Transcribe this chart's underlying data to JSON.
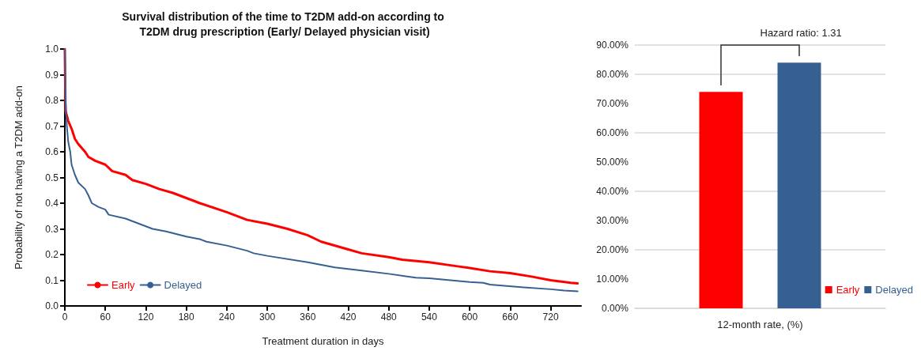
{
  "chart_data": [
    {
      "type": "line",
      "title": "Survival distribution of the time to T2DM add-on according to T2DM drug prescription (Early/ Delayed physician visit)",
      "xlabel": "Treatment duration in days",
      "ylabel": "Probability of not having a T2DM add-on",
      "series": [
        {
          "name": "Early",
          "color": "#ff0000",
          "x": [
            0,
            1,
            5,
            10,
            15,
            20,
            30,
            35,
            45,
            60,
            70,
            90,
            100,
            120,
            140,
            160,
            180,
            200,
            240,
            270,
            300,
            330,
            360,
            380,
            420,
            440,
            480,
            500,
            540,
            580,
            600,
            630,
            660,
            690,
            720,
            750,
            760
          ],
          "values": [
            1.0,
            0.76,
            0.72,
            0.69,
            0.65,
            0.63,
            0.6,
            0.58,
            0.565,
            0.55,
            0.525,
            0.51,
            0.49,
            0.475,
            0.455,
            0.44,
            0.42,
            0.4,
            0.365,
            0.335,
            0.32,
            0.3,
            0.275,
            0.25,
            0.22,
            0.205,
            0.19,
            0.18,
            0.17,
            0.155,
            0.148,
            0.135,
            0.128,
            0.115,
            0.1,
            0.09,
            0.088
          ]
        },
        {
          "name": "Delayed",
          "color": "#376092",
          "x": [
            0,
            1,
            3,
            5,
            8,
            10,
            15,
            20,
            30,
            35,
            40,
            50,
            60,
            65,
            90,
            120,
            130,
            150,
            180,
            200,
            210,
            240,
            270,
            280,
            300,
            360,
            400,
            440,
            480,
            520,
            540,
            600,
            620,
            630,
            680,
            720,
            740,
            760
          ],
          "values": [
            1.0,
            0.8,
            0.7,
            0.64,
            0.6,
            0.55,
            0.51,
            0.48,
            0.455,
            0.43,
            0.4,
            0.385,
            0.375,
            0.355,
            0.34,
            0.31,
            0.3,
            0.29,
            0.27,
            0.26,
            0.25,
            0.235,
            0.215,
            0.205,
            0.195,
            0.17,
            0.15,
            0.138,
            0.125,
            0.11,
            0.108,
            0.093,
            0.09,
            0.083,
            0.072,
            0.065,
            0.06,
            0.057
          ]
        }
      ],
      "xlim": [
        0,
        765
      ],
      "xticks": [
        0,
        60,
        120,
        180,
        240,
        300,
        360,
        420,
        480,
        540,
        600,
        660,
        720
      ],
      "ylim": [
        0,
        1
      ],
      "yticks": [
        {
          "value": 0,
          "label": "0.0"
        },
        0.1,
        0.2,
        0.3,
        0.4,
        0.5,
        0.6,
        0.7,
        0.8,
        0.9,
        {
          "value": 1,
          "label": "1.0"
        }
      ],
      "grid": false,
      "legend": "bottom left"
    },
    {
      "type": "bar",
      "categories": [
        "12-month rate, (%)"
      ],
      "series": [
        {
          "name": "Early",
          "color": "#ff0000",
          "values": [
            74
          ]
        },
        {
          "name": "Delayed",
          "color": "#376092",
          "values": [
            84
          ]
        }
      ],
      "ylim": [
        0,
        90
      ],
      "yticks": [
        {
          "value": 0,
          "label": "0.00%"
        },
        {
          "value": 10,
          "label": "10.00%"
        },
        {
          "value": 20,
          "label": "20.00%"
        },
        {
          "value": 30,
          "label": "30.00%"
        },
        {
          "value": 40,
          "label": "40.00%"
        },
        {
          "value": 50,
          "label": "50.00%"
        },
        {
          "value": 60,
          "label": "60.00%"
        },
        {
          "value": 70,
          "label": "70.00%"
        },
        {
          "value": 80,
          "label": "80.00%"
        },
        {
          "value": 90,
          "label": "90.00%"
        }
      ],
      "annotations": [
        "Hazard ratio: 1.31"
      ],
      "grid": "y",
      "legend": "bottom right"
    }
  ]
}
